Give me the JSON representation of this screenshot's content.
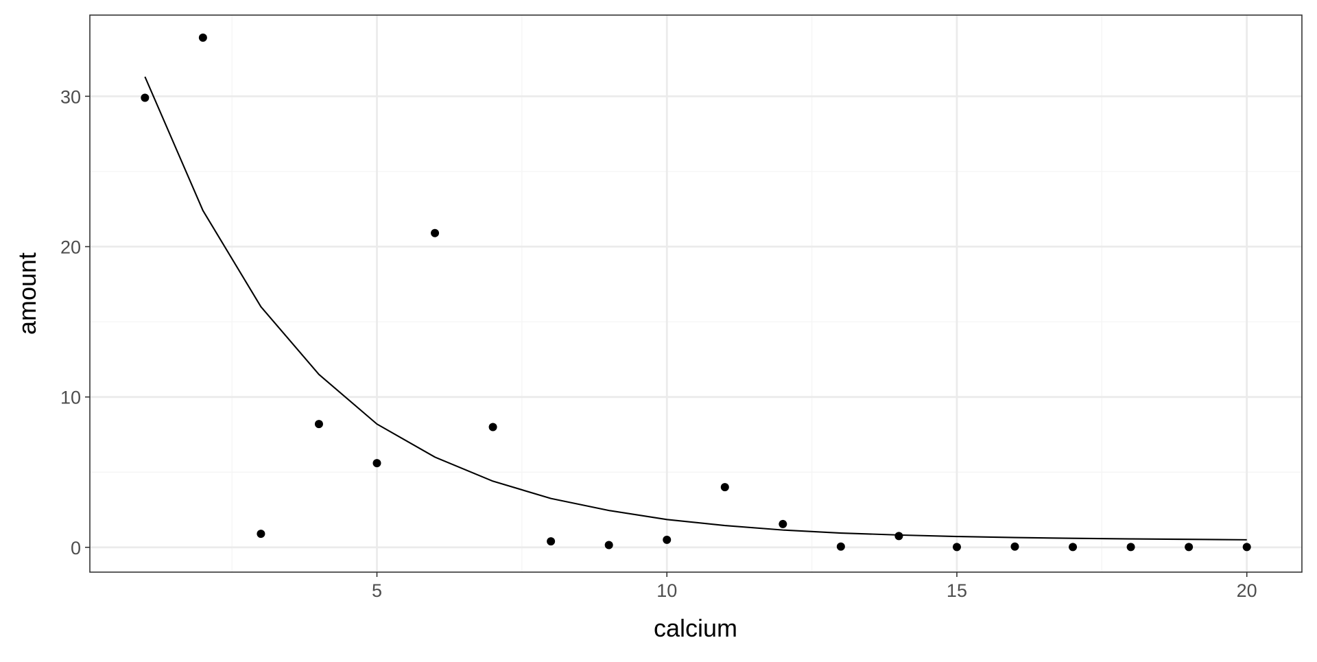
{
  "chart_data": {
    "type": "scatter",
    "title": "",
    "xlabel": "calcium",
    "ylabel": "amount",
    "xlim": [
      0.05,
      20.95
    ],
    "ylim": [
      -1.65,
      35.4
    ],
    "x_ticks": [
      5,
      10,
      15,
      20
    ],
    "x_tick_labels": [
      "5",
      "10",
      "15",
      "20"
    ],
    "y_ticks": [
      0,
      10,
      20,
      30
    ],
    "y_tick_labels": [
      "0",
      "10",
      "20",
      "30"
    ],
    "x_minor_ticks": [
      2.5,
      7.5,
      12.5,
      17.5
    ],
    "y_minor_ticks": [
      5,
      15,
      25
    ],
    "grid": true,
    "legend": "none",
    "colors": {
      "points": "#000000",
      "line": "#000000",
      "grid_major": "#ebebeb",
      "grid_minor": "#f5f5f5",
      "panel_border": "#333333",
      "tick_text": "#4d4d4d"
    },
    "series": [
      {
        "type": "scatter",
        "x": [
          1,
          2,
          3,
          4,
          5,
          6,
          7,
          8,
          9,
          10,
          11,
          12,
          13,
          14,
          15,
          16,
          17,
          18,
          19,
          20
        ],
        "y": [
          29.9,
          33.9,
          0.9,
          8.2,
          5.6,
          20.9,
          8.0,
          0.4,
          0.15,
          0.5,
          4.0,
          1.55,
          0.05,
          0.75,
          0.02,
          0.05,
          0.02,
          0.02,
          0.02,
          0.02
        ]
      },
      {
        "type": "line",
        "x": [
          1,
          2,
          3,
          4,
          5,
          6,
          7,
          8,
          9,
          10,
          11,
          12,
          13,
          14,
          15,
          16,
          17,
          18,
          19,
          20
        ],
        "y": [
          31.3,
          22.4,
          16.0,
          11.5,
          8.2,
          6.0,
          4.4,
          3.25,
          2.45,
          1.85,
          1.45,
          1.15,
          0.95,
          0.82,
          0.72,
          0.65,
          0.6,
          0.56,
          0.53,
          0.5
        ]
      }
    ]
  }
}
